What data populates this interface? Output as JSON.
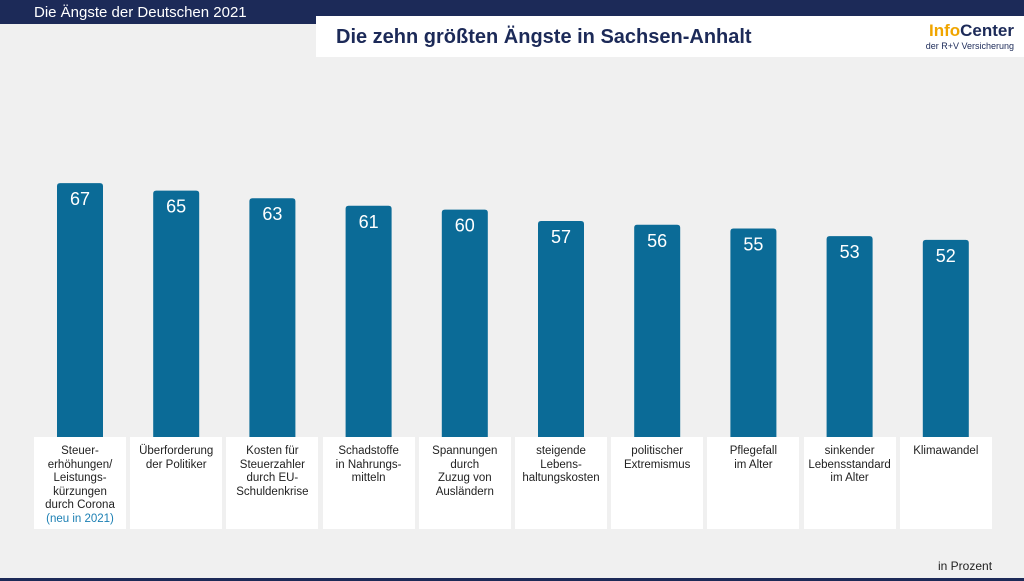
{
  "header": {
    "section": "Die Ängste der Deutschen 2021",
    "logo": {
      "brand_1": "Info",
      "brand_2": "Center",
      "subtitle": "der R+V Versicherung"
    }
  },
  "chart_data": {
    "type": "bar",
    "title": "Die zehn größten Ängste in Sachsen-Anhalt",
    "categories": [
      "Steuer-\nerhöhungen/\nLeistungs-\nkürzungen\ndurch Corona",
      "Überforderung\nder Politiker",
      "Kosten für\nSteuerzahler\ndurch EU-\nSchuldenkrise",
      "Schadstoffe\nin Nahrungs-\nmitteln",
      "Spannungen\ndurch\nZuzug von\nAusländern",
      "steigende\nLebens-\nhaltungskosten",
      "politischer\nExtremismus",
      "Pflegefall\nim Alter",
      "sinkender\nLebensstandard\nim Alter",
      "Klimawandel"
    ],
    "values": [
      67,
      65,
      63,
      61,
      60,
      57,
      56,
      55,
      53,
      52
    ],
    "color": "#0b6b97",
    "annotation": "(neu in 2021)",
    "unit_note": "in Prozent"
  }
}
